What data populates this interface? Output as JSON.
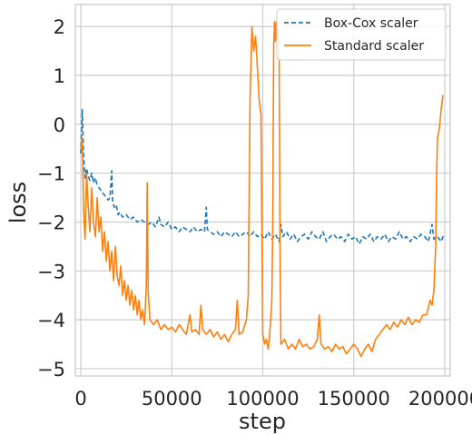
{
  "chart_data": {
    "type": "line",
    "title": "",
    "xlabel": "step",
    "ylabel": "loss",
    "xlim": [
      -3000,
      203000
    ],
    "ylim": [
      -5.15,
      2.45
    ],
    "grid": true,
    "legend_position": "top-right",
    "x_ticks": [
      0,
      50000,
      100000,
      150000,
      200000
    ],
    "x_tick_labels": [
      "0",
      "50000",
      "100000",
      "150000",
      "200000"
    ],
    "y_ticks": [
      -5,
      -4,
      -3,
      -2,
      -1,
      0,
      1,
      2
    ],
    "y_tick_labels": [
      "−5",
      "−4",
      "−3",
      "−2",
      "−1",
      "0",
      "1",
      "2"
    ],
    "series": [
      {
        "name": "Box-Cox scaler",
        "color": "#1f77b4",
        "dash": "dashed",
        "points": [
          [
            0,
            -0.6
          ],
          [
            800,
            0.3
          ],
          [
            1600,
            -0.7
          ],
          [
            2400,
            -1.1
          ],
          [
            3200,
            -0.9
          ],
          [
            4000,
            -1.05
          ],
          [
            5000,
            -1.15
          ],
          [
            6000,
            -1.0
          ],
          [
            7000,
            -1.2
          ],
          [
            8000,
            -1.1
          ],
          [
            9000,
            -1.25
          ],
          [
            10000,
            -1.3
          ],
          [
            11000,
            -1.35
          ],
          [
            12000,
            -1.4
          ],
          [
            13000,
            -1.45
          ],
          [
            14000,
            -1.5
          ],
          [
            15000,
            -1.55
          ],
          [
            16000,
            -1.5
          ],
          [
            17000,
            -0.95
          ],
          [
            17500,
            -1.6
          ],
          [
            18500,
            -1.7
          ],
          [
            19500,
            -1.65
          ],
          [
            20500,
            -1.85
          ],
          [
            21500,
            -1.8
          ],
          [
            23000,
            -1.9
          ],
          [
            25000,
            -1.85
          ],
          [
            27000,
            -1.95
          ],
          [
            29000,
            -1.9
          ],
          [
            31000,
            -2.0
          ],
          [
            33000,
            -1.95
          ],
          [
            35000,
            -2.0
          ],
          [
            37000,
            -2.05
          ],
          [
            39000,
            -2.0
          ],
          [
            41000,
            -2.1
          ],
          [
            43000,
            -1.9
          ],
          [
            44000,
            -2.05
          ],
          [
            46000,
            -2.1
          ],
          [
            48000,
            -2.0
          ],
          [
            50000,
            -2.15
          ],
          [
            52000,
            -2.1
          ],
          [
            54000,
            -2.2
          ],
          [
            56000,
            -2.1
          ],
          [
            58000,
            -2.15
          ],
          [
            60000,
            -2.2
          ],
          [
            62000,
            -2.1
          ],
          [
            64000,
            -2.2
          ],
          [
            66000,
            -2.15
          ],
          [
            68000,
            -2.2
          ],
          [
            69000,
            -1.7
          ],
          [
            69500,
            -2.15
          ],
          [
            71000,
            -2.2
          ],
          [
            73000,
            -2.25
          ],
          [
            75000,
            -2.2
          ],
          [
            77000,
            -2.3
          ],
          [
            79000,
            -2.2
          ],
          [
            81000,
            -2.25
          ],
          [
            83000,
            -2.3
          ],
          [
            85000,
            -2.2
          ],
          [
            87000,
            -2.3
          ],
          [
            89000,
            -2.25
          ],
          [
            91000,
            -2.2
          ],
          [
            93000,
            -2.3
          ],
          [
            95000,
            -2.2
          ],
          [
            97000,
            -2.3
          ],
          [
            99000,
            -2.25
          ],
          [
            101000,
            -2.35
          ],
          [
            103000,
            -2.2
          ],
          [
            105000,
            -2.35
          ],
          [
            107000,
            -2.25
          ],
          [
            109000,
            -2.4
          ],
          [
            110000,
            -2.05
          ],
          [
            111000,
            -2.3
          ],
          [
            113000,
            -2.2
          ],
          [
            115000,
            -2.35
          ],
          [
            117000,
            -2.25
          ],
          [
            119000,
            -2.4
          ],
          [
            121000,
            -2.3
          ],
          [
            123000,
            -2.25
          ],
          [
            125000,
            -2.35
          ],
          [
            127000,
            -2.2
          ],
          [
            129000,
            -2.3
          ],
          [
            131000,
            -2.35
          ],
          [
            133000,
            -2.2
          ],
          [
            135000,
            -2.4
          ],
          [
            137000,
            -2.3
          ],
          [
            139000,
            -2.25
          ],
          [
            141000,
            -2.35
          ],
          [
            143000,
            -2.3
          ],
          [
            145000,
            -2.4
          ],
          [
            147000,
            -2.25
          ],
          [
            149000,
            -2.35
          ],
          [
            151000,
            -2.3
          ],
          [
            153000,
            -2.45
          ],
          [
            155000,
            -2.3
          ],
          [
            157000,
            -2.35
          ],
          [
            159000,
            -2.25
          ],
          [
            161000,
            -2.4
          ],
          [
            163000,
            -2.3
          ],
          [
            165000,
            -2.35
          ],
          [
            167000,
            -2.25
          ],
          [
            169000,
            -2.4
          ],
          [
            171000,
            -2.3
          ],
          [
            173000,
            -2.35
          ],
          [
            175000,
            -2.2
          ],
          [
            177000,
            -2.35
          ],
          [
            179000,
            -2.3
          ],
          [
            181000,
            -2.4
          ],
          [
            183000,
            -2.3
          ],
          [
            185000,
            -2.35
          ],
          [
            187000,
            -2.25
          ],
          [
            189000,
            -2.3
          ],
          [
            191000,
            -2.4
          ],
          [
            193000,
            -2.05
          ],
          [
            194000,
            -2.35
          ],
          [
            196000,
            -2.3
          ],
          [
            198000,
            -2.4
          ],
          [
            199000,
            -2.3
          ],
          [
            200000,
            -2.35
          ]
        ]
      },
      {
        "name": "Standard scaler",
        "color": "#ff7f0e",
        "dash": "solid",
        "points": [
          [
            0,
            -0.5
          ],
          [
            800,
            -0.3
          ],
          [
            1600,
            -1.8
          ],
          [
            2400,
            -2.35
          ],
          [
            3200,
            -1.0
          ],
          [
            4000,
            -1.6
          ],
          [
            5000,
            -2.2
          ],
          [
            6000,
            -1.3
          ],
          [
            7000,
            -2.0
          ],
          [
            8000,
            -2.3
          ],
          [
            9000,
            -1.5
          ],
          [
            10000,
            -2.2
          ],
          [
            11000,
            -1.9
          ],
          [
            12000,
            -2.6
          ],
          [
            13000,
            -2.2
          ],
          [
            14000,
            -2.8
          ],
          [
            15000,
            -2.4
          ],
          [
            16000,
            -3.0
          ],
          [
            17000,
            -2.6
          ],
          [
            18000,
            -3.2
          ],
          [
            19000,
            -2.5
          ],
          [
            20000,
            -3.1
          ],
          [
            21000,
            -3.3
          ],
          [
            22000,
            -2.9
          ],
          [
            23000,
            -3.5
          ],
          [
            24000,
            -3.2
          ],
          [
            25000,
            -3.6
          ],
          [
            26000,
            -3.3
          ],
          [
            27000,
            -3.7
          ],
          [
            28000,
            -3.4
          ],
          [
            29000,
            -3.8
          ],
          [
            30000,
            -3.5
          ],
          [
            31000,
            -3.9
          ],
          [
            32000,
            -3.6
          ],
          [
            33000,
            -4.0
          ],
          [
            34000,
            -3.8
          ],
          [
            35000,
            -4.1
          ],
          [
            36000,
            -3.3
          ],
          [
            36500,
            -1.2
          ],
          [
            37000,
            -3.4
          ],
          [
            38000,
            -4.0
          ],
          [
            40000,
            -4.1
          ],
          [
            42000,
            -4.0
          ],
          [
            44000,
            -4.2
          ],
          [
            46000,
            -4.1
          ],
          [
            48000,
            -4.2
          ],
          [
            50000,
            -4.15
          ],
          [
            52000,
            -4.25
          ],
          [
            54000,
            -4.1
          ],
          [
            56000,
            -4.2
          ],
          [
            58000,
            -4.3
          ],
          [
            60000,
            -3.9
          ],
          [
            61000,
            -4.25
          ],
          [
            63000,
            -4.2
          ],
          [
            65000,
            -4.3
          ],
          [
            66000,
            -3.7
          ],
          [
            67000,
            -4.2
          ],
          [
            69000,
            -4.3
          ],
          [
            71000,
            -4.2
          ],
          [
            73000,
            -4.35
          ],
          [
            75000,
            -4.25
          ],
          [
            77000,
            -4.4
          ],
          [
            79000,
            -4.3
          ],
          [
            81000,
            -4.45
          ],
          [
            83000,
            -4.3
          ],
          [
            85000,
            -4.2
          ],
          [
            86000,
            -3.6
          ],
          [
            87000,
            -4.3
          ],
          [
            89000,
            -4.25
          ],
          [
            91000,
            -4.0
          ],
          [
            92000,
            -3.5
          ],
          [
            93000,
            0.5
          ],
          [
            94000,
            2.0
          ],
          [
            95000,
            1.5
          ],
          [
            96000,
            1.8
          ],
          [
            97000,
            1.2
          ],
          [
            98000,
            0.5
          ],
          [
            99000,
            0.2
          ],
          [
            100000,
            -4.3
          ],
          [
            101000,
            -4.5
          ],
          [
            102000,
            -4.4
          ],
          [
            103000,
            -4.6
          ],
          [
            104000,
            -4.2
          ],
          [
            105000,
            -3.6
          ],
          [
            105500,
            -2.0
          ],
          [
            106000,
            1.6
          ],
          [
            106500,
            2.1
          ],
          [
            107000,
            1.7
          ],
          [
            107500,
            2.1
          ],
          [
            108000,
            2.0
          ],
          [
            109000,
            1.6
          ],
          [
            109500,
            -2.5
          ],
          [
            110000,
            -4.5
          ],
          [
            112000,
            -4.4
          ],
          [
            114000,
            -4.6
          ],
          [
            116000,
            -4.5
          ],
          [
            118000,
            -4.6
          ],
          [
            120000,
            -4.4
          ],
          [
            122000,
            -4.55
          ],
          [
            124000,
            -4.5
          ],
          [
            126000,
            -4.6
          ],
          [
            128000,
            -4.55
          ],
          [
            130000,
            -4.4
          ],
          [
            131000,
            -3.9
          ],
          [
            132000,
            -4.5
          ],
          [
            134000,
            -4.6
          ],
          [
            136000,
            -4.55
          ],
          [
            138000,
            -4.65
          ],
          [
            140000,
            -4.5
          ],
          [
            142000,
            -4.6
          ],
          [
            144000,
            -4.55
          ],
          [
            146000,
            -4.7
          ],
          [
            148000,
            -4.6
          ],
          [
            150000,
            -4.5
          ],
          [
            152000,
            -4.6
          ],
          [
            154000,
            -4.75
          ],
          [
            156000,
            -4.6
          ],
          [
            158000,
            -4.5
          ],
          [
            160000,
            -4.65
          ],
          [
            162000,
            -4.4
          ],
          [
            164000,
            -4.3
          ],
          [
            166000,
            -4.2
          ],
          [
            168000,
            -4.1
          ],
          [
            170000,
            -4.2
          ],
          [
            172000,
            -4.05
          ],
          [
            174000,
            -4.15
          ],
          [
            176000,
            -4.0
          ],
          [
            178000,
            -4.1
          ],
          [
            180000,
            -3.95
          ],
          [
            182000,
            -4.1
          ],
          [
            184000,
            -4.0
          ],
          [
            186000,
            -4.05
          ],
          [
            188000,
            -3.9
          ],
          [
            190000,
            -3.9
          ],
          [
            192000,
            -3.6
          ],
          [
            193000,
            -3.7
          ],
          [
            194000,
            -3.4
          ],
          [
            195000,
            -2.5
          ],
          [
            195500,
            -1.0
          ],
          [
            196000,
            -0.3
          ],
          [
            197000,
            -0.1
          ],
          [
            198000,
            0.3
          ],
          [
            199000,
            0.6
          ]
        ]
      }
    ]
  }
}
